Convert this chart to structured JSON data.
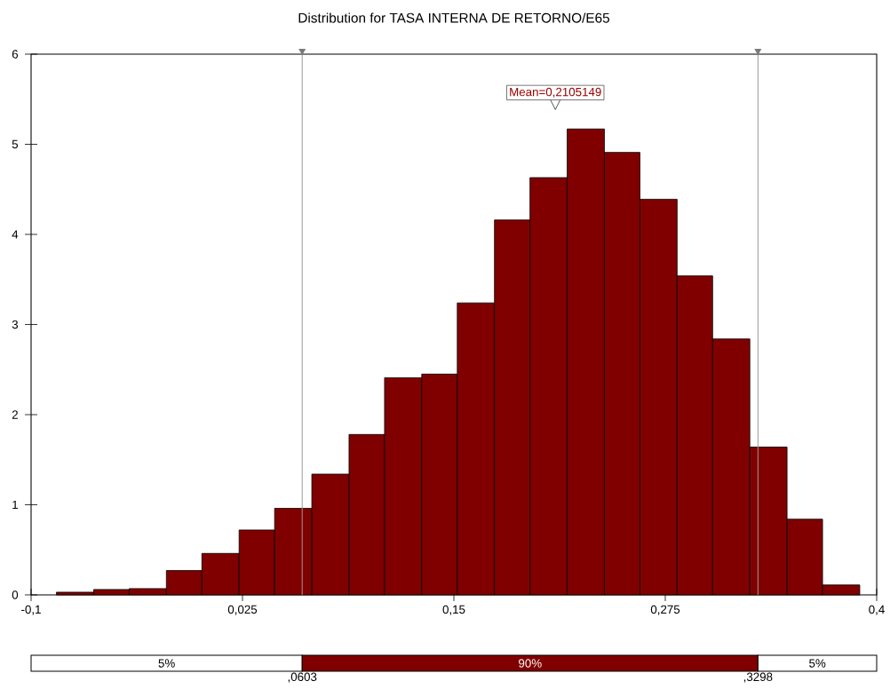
{
  "chart_data": [
    {
      "type": "histogram",
      "title": "Distribution for TASA INTERNA DE RETORNO/E65",
      "bins": [
        -0.085,
        -0.063,
        -0.042,
        -0.02,
        0.001,
        0.023,
        0.044,
        0.066,
        0.088,
        0.109,
        0.131,
        0.152,
        0.174,
        0.195,
        0.217,
        0.239,
        0.26,
        0.282,
        0.303,
        0.325,
        0.347,
        0.368,
        0.39
      ],
      "values": [
        0.03,
        0.06,
        0.07,
        0.27,
        0.46,
        0.72,
        0.96,
        1.34,
        1.78,
        2.41,
        2.45,
        3.24,
        4.16,
        4.63,
        5.17,
        4.91,
        4.39,
        3.54,
        2.84,
        1.64,
        0.84,
        0.11
      ],
      "color": "#800000",
      "xlim": [
        -0.1,
        0.4
      ],
      "ylim": [
        0,
        6
      ],
      "xticks": [
        {
          "value": -0.1,
          "label": "-0,1"
        },
        {
          "value": 0.025,
          "label": "0,025"
        },
        {
          "value": 0.15,
          "label": "0,15"
        },
        {
          "value": 0.275,
          "label": "0,275"
        },
        {
          "value": 0.4,
          "label": "0,4"
        }
      ],
      "yticks": [
        0,
        1,
        2,
        3,
        4,
        5,
        6
      ],
      "ref_lines": [
        {
          "axis": "x",
          "value": 0.0603,
          "color": "#999999"
        },
        {
          "axis": "x",
          "value": 0.3298,
          "color": "#999999"
        }
      ],
      "annotations": [
        "Mean=0,2105149"
      ]
    },
    {
      "type": "other",
      "annotations": [
        "5%",
        "90%",
        "5%",
        ",0603",
        ",3298"
      ]
    }
  ]
}
